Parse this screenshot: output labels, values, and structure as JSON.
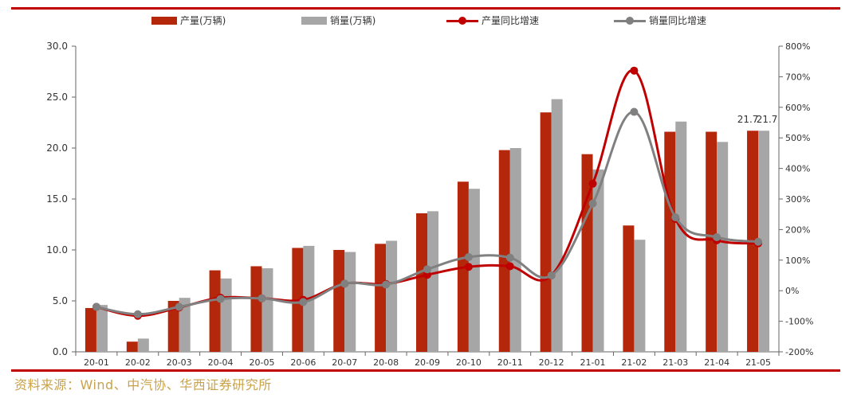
{
  "legend": {
    "prod": "产量(万辆)",
    "sales": "销量(万辆)",
    "prod_yoy": "产量同比增速",
    "sales_yoy": "销量同比增速"
  },
  "source": "资料来源：Wind、中汽协、华西证券研究所",
  "colors": {
    "prod": "#b5270b",
    "sales": "#a6a6a6",
    "prod_yoy": "#c00000",
    "sales_yoy": "#808080",
    "rule": "#c00000",
    "source": "#c9a24a"
  },
  "chart_data": {
    "type": "bar",
    "categories": [
      "20-01",
      "20-02",
      "20-03",
      "20-04",
      "20-05",
      "20-06",
      "20-07",
      "20-08",
      "20-09",
      "20-10",
      "20-11",
      "20-12",
      "21-01",
      "21-02",
      "21-03",
      "21-04",
      "21-05"
    ],
    "series": [
      {
        "name": "产量(万辆)",
        "kind": "bar",
        "axis": "left",
        "values": [
          4.3,
          1.0,
          5.0,
          8.0,
          8.4,
          10.2,
          10.0,
          10.6,
          13.6,
          16.7,
          19.8,
          23.5,
          19.4,
          12.4,
          21.6,
          21.6,
          21.7
        ]
      },
      {
        "name": "销量(万辆)",
        "kind": "bar",
        "axis": "left",
        "values": [
          4.6,
          1.3,
          5.3,
          7.2,
          8.2,
          10.4,
          9.8,
          10.9,
          13.8,
          16.0,
          20.0,
          24.8,
          17.9,
          11.0,
          22.6,
          20.6,
          21.7
        ]
      },
      {
        "name": "产量同比增速",
        "kind": "line",
        "axis": "right",
        "values": [
          -53,
          -82,
          -55,
          -23,
          -25,
          -30,
          23,
          22,
          52,
          78,
          80,
          50,
          350,
          720,
          235,
          165,
          155
        ]
      },
      {
        "name": "销量同比增速",
        "kind": "line",
        "axis": "right",
        "values": [
          -53,
          -77,
          -53,
          -27,
          -25,
          -37,
          23,
          20,
          70,
          110,
          108,
          50,
          285,
          585,
          240,
          175,
          160
        ]
      }
    ],
    "data_labels": [
      {
        "category": "21-05",
        "series": "产量(万辆)",
        "text": "21.7"
      },
      {
        "category": "21-05",
        "series": "销量(万辆)",
        "text": "21.7"
      }
    ],
    "ylim_left": [
      0,
      30
    ],
    "ylim_right": [
      -200,
      800
    ],
    "left_ticks": [
      "0.0",
      "5.0",
      "10.0",
      "15.0",
      "20.0",
      "25.0",
      "30.0"
    ],
    "right_ticks": [
      "-200%",
      "-100%",
      "0%",
      "100%",
      "200%",
      "300%",
      "400%",
      "500%",
      "600%",
      "700%",
      "800%"
    ],
    "legend_position": "top",
    "grid": false
  }
}
